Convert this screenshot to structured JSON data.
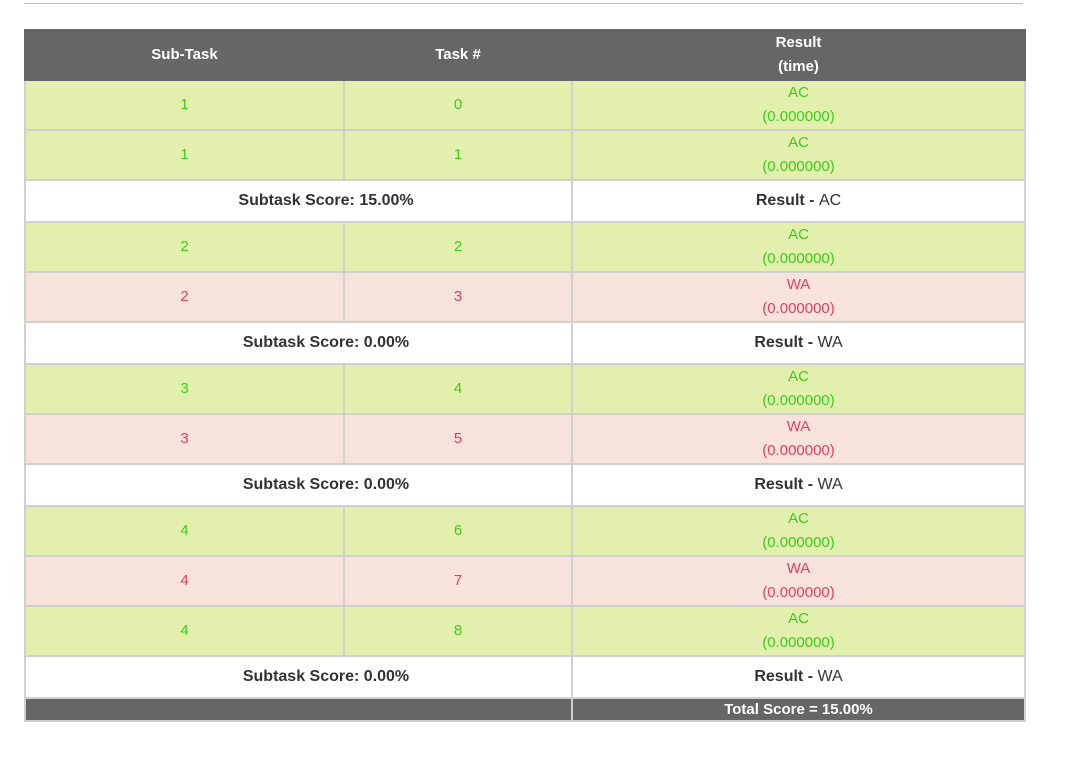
{
  "table": {
    "headers": {
      "subtask": "Sub-Task",
      "task": "Task #",
      "result_line1": "Result",
      "result_line2": "(time)"
    },
    "groups": [
      {
        "rows": [
          {
            "subtask": "1",
            "task": "0",
            "result": "AC",
            "time": "(0.000000)"
          },
          {
            "subtask": "1",
            "task": "1",
            "result": "AC",
            "time": "(0.000000)"
          }
        ],
        "score": "Subtask Score: 15.00%",
        "result_label": "Result - ",
        "result_value": "AC"
      },
      {
        "rows": [
          {
            "subtask": "2",
            "task": "2",
            "result": "AC",
            "time": "(0.000000)"
          },
          {
            "subtask": "2",
            "task": "3",
            "result": "WA",
            "time": "(0.000000)"
          }
        ],
        "score": "Subtask Score: 0.00%",
        "result_label": "Result - ",
        "result_value": "WA"
      },
      {
        "rows": [
          {
            "subtask": "3",
            "task": "4",
            "result": "AC",
            "time": "(0.000000)"
          },
          {
            "subtask": "3",
            "task": "5",
            "result": "WA",
            "time": "(0.000000)"
          }
        ],
        "score": "Subtask Score: 0.00%",
        "result_label": "Result - ",
        "result_value": "WA"
      },
      {
        "rows": [
          {
            "subtask": "4",
            "task": "6",
            "result": "AC",
            "time": "(0.000000)"
          },
          {
            "subtask": "4",
            "task": "7",
            "result": "WA",
            "time": "(0.000000)"
          },
          {
            "subtask": "4",
            "task": "8",
            "result": "AC",
            "time": "(0.000000)"
          }
        ],
        "score": "Subtask Score: 0.00%",
        "result_label": "Result - ",
        "result_value": "WA"
      }
    ],
    "total": "Total Score = 15.00%"
  },
  "colors": {
    "header_bg": "#666666",
    "ac_bg": "#e3f0ad",
    "ac_text": "#3ccc1c",
    "wa_bg": "#f8e2dc",
    "wa_text": "#e0405a"
  }
}
